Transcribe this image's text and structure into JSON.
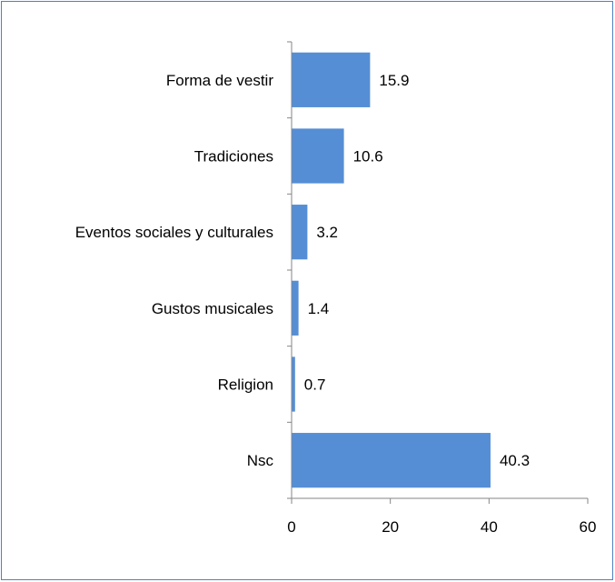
{
  "chart_data": {
    "type": "bar",
    "orientation": "horizontal",
    "title": "",
    "xlabel": "",
    "ylabel": "",
    "categories": [
      "Forma de vestir",
      "Tradiciones",
      "Eventos sociales y culturales",
      "Gustos musicales",
      "Religion",
      "Nsc"
    ],
    "values": [
      15.9,
      10.6,
      3.2,
      1.4,
      0.7,
      40.3
    ],
    "value_labels": [
      "15.9",
      "10.6",
      "3.2",
      "1.4",
      "0.7",
      "40.3"
    ],
    "xlim": [
      0,
      60
    ],
    "xticks": [
      0,
      20,
      40,
      60
    ],
    "xtick_labels": [
      "0",
      "20",
      "40",
      "60"
    ],
    "grid": false,
    "legend": "none",
    "bar_color": "#558ed5",
    "border_color": "#4f81bd"
  }
}
